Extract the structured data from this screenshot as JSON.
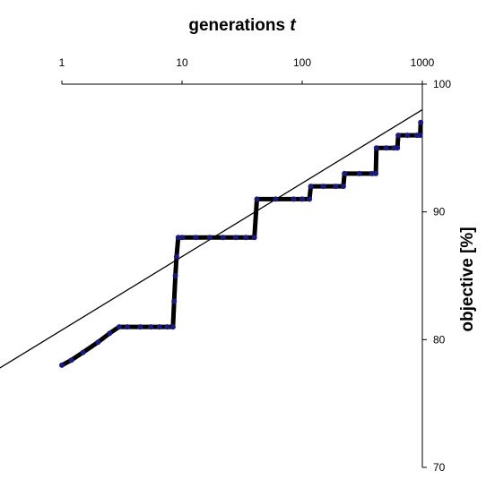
{
  "chart_data": {
    "type": "line",
    "xlabel_prefix": "generations ",
    "xlabel_var": "t",
    "ylabel": "objective [%]",
    "x_scale": "log",
    "xlim": [
      1,
      1000
    ],
    "ylim": [
      70,
      100
    ],
    "x_ticks": [
      1,
      10,
      100,
      1000
    ],
    "x_tick_labels": [
      "1",
      "10",
      "100",
      "1000"
    ],
    "y_ticks": [
      70,
      80,
      90,
      100
    ],
    "y_tick_labels": [
      "70",
      "80",
      "90",
      "100"
    ],
    "grid": false,
    "legend": "none",
    "colors": {
      "points": "#1a1a7a",
      "line": "#000000",
      "trend": "#000000"
    },
    "series": [
      {
        "points": [
          [
            1,
            78
          ],
          [
            1.2,
            78.4
          ],
          [
            1.5,
            79
          ],
          [
            2,
            79.8
          ],
          [
            2.5,
            80.5
          ],
          [
            3,
            81
          ],
          [
            3.5,
            81
          ],
          [
            4.5,
            81
          ],
          [
            5.5,
            81
          ],
          [
            6.5,
            81
          ],
          [
            7.5,
            81
          ],
          [
            8.4,
            81
          ],
          [
            8.6,
            83
          ],
          [
            8.8,
            85
          ],
          [
            9.0,
            86.5
          ],
          [
            9.3,
            88
          ],
          [
            10,
            88
          ],
          [
            13,
            88
          ],
          [
            17,
            88
          ],
          [
            22,
            88
          ],
          [
            28,
            88
          ],
          [
            34,
            88
          ],
          [
            40,
            88
          ],
          [
            42,
            91
          ],
          [
            60,
            91
          ],
          [
            85,
            91
          ],
          [
            100,
            91
          ],
          [
            115,
            91
          ],
          [
            118,
            92
          ],
          [
            150,
            92
          ],
          [
            190,
            92
          ],
          [
            220,
            92
          ],
          [
            225,
            93
          ],
          [
            300,
            93
          ],
          [
            380,
            93
          ],
          [
            410,
            93
          ],
          [
            415,
            95
          ],
          [
            500,
            95
          ],
          [
            580,
            95
          ],
          [
            620,
            95
          ],
          [
            630,
            96
          ],
          [
            750,
            96
          ],
          [
            900,
            96
          ],
          [
            960,
            96
          ],
          [
            970,
            97
          ]
        ]
      },
      {
        "trend": [
          [
            0.1,
            75
          ],
          [
            1000,
            98
          ]
        ]
      }
    ]
  }
}
